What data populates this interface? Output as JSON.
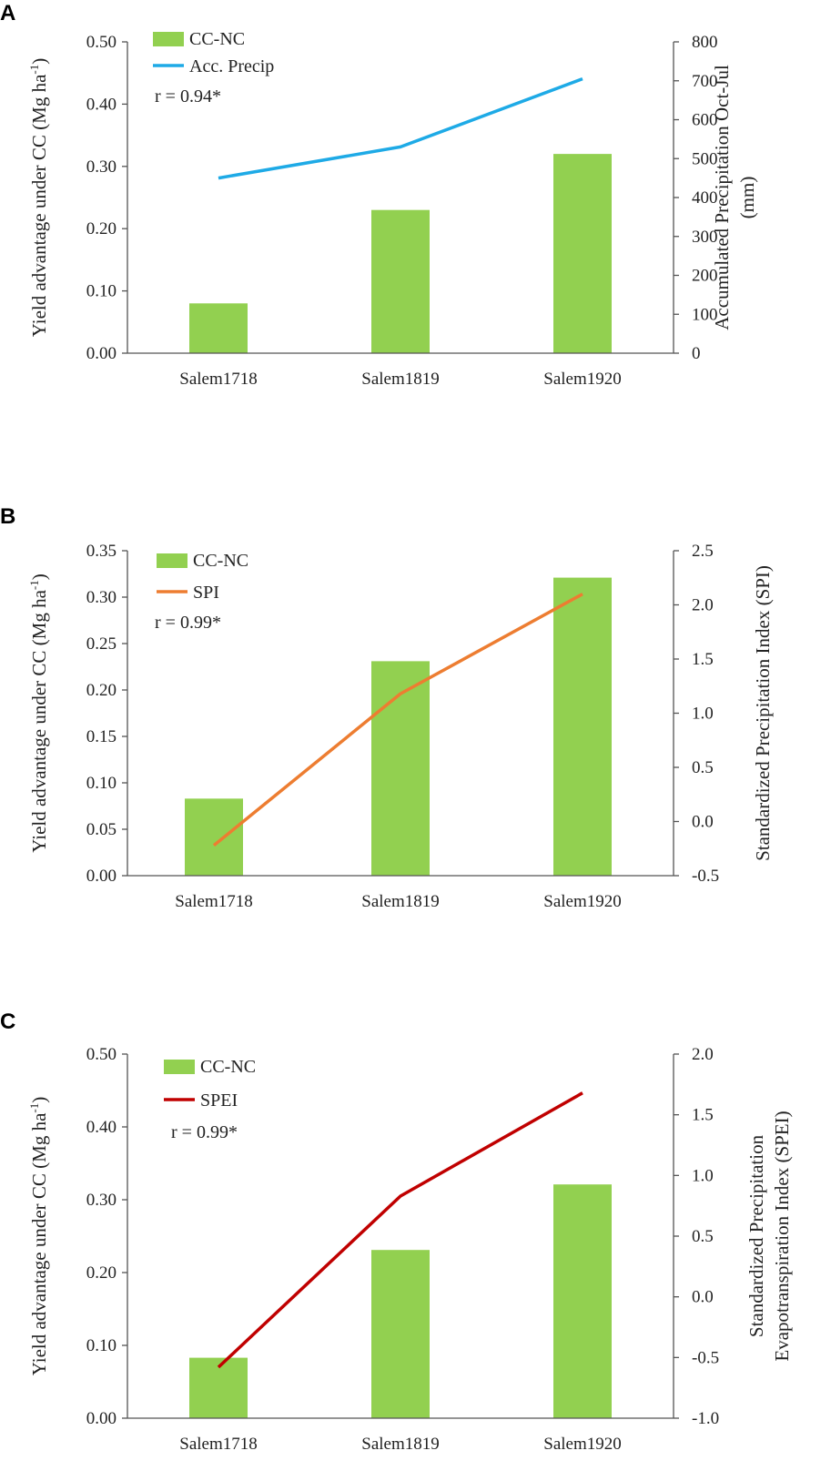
{
  "figure": {
    "panel_labels": [
      "A",
      "B",
      "C"
    ]
  },
  "colors": {
    "bar": "#92d050",
    "acc_precip": "#1eaae6",
    "spi": "#ed7d31",
    "spei": "#c00000"
  },
  "chart_data": [
    {
      "type": "bar",
      "panel": "A",
      "categories": [
        "Salem1718",
        "Salem1819",
        "Salem1920"
      ],
      "bar_series": {
        "name": "CC-NC",
        "values": [
          0.08,
          0.23,
          0.32
        ]
      },
      "line_series": {
        "name": "Acc. Precip",
        "values": [
          450,
          530,
          705
        ]
      },
      "y_left": {
        "title_main": "Yield advantage under CC (Mg ha",
        "title_sup": "-1",
        "title_close": ")",
        "min": 0,
        "max": 0.5,
        "step": 0.1,
        "decimals": 2
      },
      "y_right": {
        "title_lines": [
          "Accumulated Precipitation Oct-Jul",
          "(mm)"
        ],
        "min": 0,
        "max": 800,
        "step": 100,
        "decimals": 0
      },
      "annotation": "r = 0.94*"
    },
    {
      "type": "bar",
      "panel": "B",
      "categories": [
        "Salem1718",
        "Salem1819",
        "Salem1920"
      ],
      "bar_series": {
        "name": "CC-NC",
        "values": [
          0.083,
          0.231,
          0.321
        ]
      },
      "line_series": {
        "name": "SPI",
        "values": [
          -0.22,
          1.18,
          2.1
        ]
      },
      "y_left": {
        "title_main": "Yield advantage under CC (Mg ha",
        "title_sup": "-1",
        "title_close": ")",
        "min": 0,
        "max": 0.35,
        "step": 0.05,
        "decimals": 2
      },
      "y_right": {
        "title_lines": [
          "Standardized Precipitation Index (SPI)"
        ],
        "min": -0.5,
        "max": 2.5,
        "step": 0.5,
        "decimals": 1
      },
      "annotation": "r = 0.99*"
    },
    {
      "type": "bar",
      "panel": "C",
      "categories": [
        "Salem1718",
        "Salem1819",
        "Salem1920"
      ],
      "bar_series": {
        "name": "CC-NC",
        "values": [
          0.083,
          0.231,
          0.321
        ]
      },
      "line_series": {
        "name": "SPEI",
        "values": [
          -0.58,
          0.83,
          1.68
        ]
      },
      "y_left": {
        "title_main": "Yield advantage under CC (Mg ha",
        "title_sup": "-1",
        "title_close": ")",
        "min": 0,
        "max": 0.5,
        "step": 0.1,
        "decimals": 2
      },
      "y_right": {
        "title_lines": [
          "Standardized Precipitation",
          "Evapotranspiration Index (SPEI)"
        ],
        "min": -1,
        "max": 2,
        "step": 0.5,
        "decimals": 1
      },
      "annotation": "r = 0.99*"
    }
  ]
}
